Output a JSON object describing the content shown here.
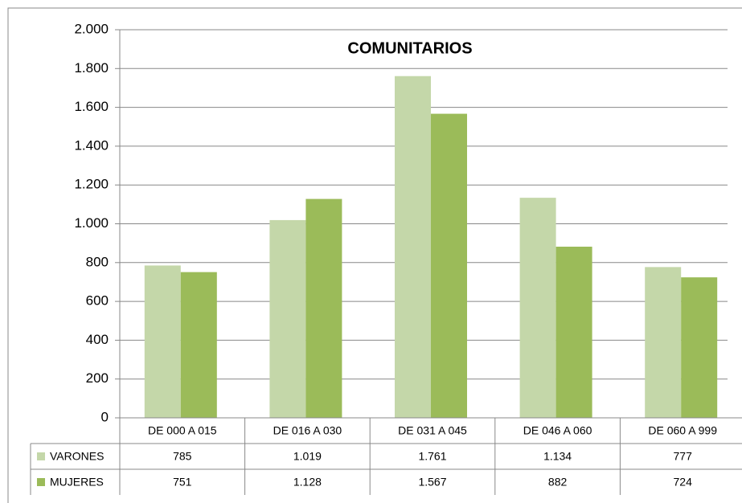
{
  "chart_data": {
    "type": "bar",
    "title": "COMUNITARIOS",
    "categories": [
      "DE 000 A 015",
      "DE 016 A 030",
      "DE 031 A 045",
      "DE 046 A 060",
      "DE 060 A 999"
    ],
    "series": [
      {
        "name": "VARONES",
        "color": "#c4d7a9",
        "values": [
          785,
          1019,
          1761,
          1134,
          777
        ],
        "value_labels": [
          "785",
          "1.019",
          "1.761",
          "1.134",
          "777"
        ]
      },
      {
        "name": "MUJERES",
        "color": "#9bbb59",
        "values": [
          751,
          1128,
          1567,
          882,
          724
        ],
        "value_labels": [
          "751",
          "1.128",
          "1.567",
          "882",
          "724"
        ]
      }
    ],
    "ylim": [
      0,
      2000
    ],
    "yticks": [
      0,
      200,
      400,
      600,
      800,
      {
        "value": 1000,
        "label": "1.000"
      },
      {
        "value": 1200,
        "label": "1.200"
      },
      {
        "value": 1400,
        "label": "1.400"
      },
      {
        "value": 1600,
        "label": "1.600"
      },
      {
        "value": 1800,
        "label": "1.800"
      },
      {
        "value": 2000,
        "label": "2.000"
      }
    ],
    "grid": true
  }
}
